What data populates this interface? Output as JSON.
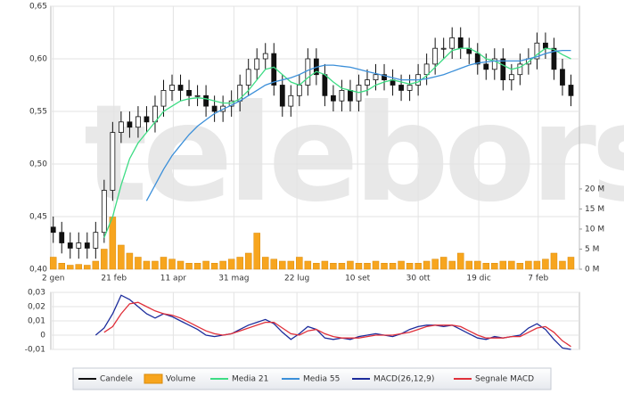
{
  "chart_data": [
    {
      "type": "candlestick",
      "watermark": "teleborsa",
      "x": [
        0,
        7,
        14,
        21,
        28,
        35,
        42,
        49,
        56,
        63,
        70,
        77,
        84,
        91,
        98,
        105,
        112,
        119,
        126,
        133,
        140,
        147,
        154,
        161,
        168,
        175,
        182,
        189,
        196,
        203,
        210,
        217,
        224,
        231,
        238,
        245,
        252,
        259,
        266,
        273,
        280,
        287,
        294,
        301,
        308,
        315,
        322,
        329,
        336,
        343,
        350,
        357,
        364,
        371,
        378,
        385,
        392,
        399,
        406,
        413,
        420,
        427
      ],
      "xlim": [
        -2,
        434
      ],
      "xticks": [
        {
          "value": 0,
          "label": "2 gen"
        },
        {
          "value": 50,
          "label": "21 feb"
        },
        {
          "value": 99,
          "label": "11 apr"
        },
        {
          "value": 149,
          "label": "31 mag"
        },
        {
          "value": 201,
          "label": "22 lug"
        },
        {
          "value": 251,
          "label": "10 set"
        },
        {
          "value": 301,
          "label": "30 ott"
        },
        {
          "value": 351,
          "label": "19 dic"
        },
        {
          "value": 400,
          "label": "7 feb"
        }
      ],
      "ylim": [
        0.4,
        0.65
      ],
      "yticks": [
        {
          "value": 0.4,
          "label": "0,40"
        },
        {
          "value": 0.45,
          "label": "0,45"
        },
        {
          "value": 0.5,
          "label": "0,50"
        },
        {
          "value": 0.55,
          "label": "0,55"
        },
        {
          "value": 0.6,
          "label": "0,60"
        },
        {
          "value": 0.65,
          "label": "0,65"
        }
      ],
      "y2lim": [
        0,
        65.5
      ],
      "y2ticks": [
        {
          "value": 0,
          "label": "0 M"
        },
        {
          "value": 5,
          "label": "5 M"
        },
        {
          "value": 10,
          "label": "10 M"
        },
        {
          "value": 15,
          "label": "15 M"
        },
        {
          "value": 20,
          "label": "20 M"
        }
      ],
      "grid": true,
      "candles": {
        "name": "Candele",
        "color": "#111111",
        "open": [
          0.44,
          0.435,
          0.425,
          0.42,
          0.425,
          0.42,
          0.435,
          0.475,
          0.53,
          0.54,
          0.535,
          0.545,
          0.54,
          0.555,
          0.57,
          0.575,
          0.57,
          0.565,
          0.565,
          0.555,
          0.55,
          0.555,
          0.56,
          0.575,
          0.59,
          0.6,
          0.605,
          0.575,
          0.555,
          0.565,
          0.575,
          0.6,
          0.585,
          0.565,
          0.56,
          0.57,
          0.56,
          0.575,
          0.58,
          0.585,
          0.58,
          0.575,
          0.57,
          0.575,
          0.585,
          0.595,
          0.61,
          0.61,
          0.62,
          0.61,
          0.605,
          0.595,
          0.59,
          0.6,
          0.58,
          0.585,
          0.595,
          0.6,
          0.615,
          0.61,
          0.59,
          0.575
        ],
        "high": [
          0.45,
          0.445,
          0.435,
          0.435,
          0.435,
          0.445,
          0.485,
          0.54,
          0.55,
          0.55,
          0.555,
          0.555,
          0.565,
          0.58,
          0.585,
          0.585,
          0.58,
          0.575,
          0.575,
          0.565,
          0.565,
          0.57,
          0.585,
          0.6,
          0.61,
          0.615,
          0.615,
          0.585,
          0.575,
          0.585,
          0.61,
          0.61,
          0.595,
          0.575,
          0.58,
          0.58,
          0.585,
          0.59,
          0.595,
          0.595,
          0.59,
          0.585,
          0.585,
          0.595,
          0.605,
          0.62,
          0.62,
          0.63,
          0.63,
          0.62,
          0.615,
          0.605,
          0.61,
          0.61,
          0.595,
          0.605,
          0.61,
          0.625,
          0.625,
          0.62,
          0.6,
          0.585
        ],
        "low": [
          0.425,
          0.415,
          0.41,
          0.41,
          0.41,
          0.41,
          0.425,
          0.465,
          0.52,
          0.525,
          0.525,
          0.53,
          0.53,
          0.545,
          0.56,
          0.56,
          0.555,
          0.555,
          0.545,
          0.54,
          0.54,
          0.545,
          0.55,
          0.565,
          0.58,
          0.59,
          0.565,
          0.545,
          0.545,
          0.555,
          0.565,
          0.575,
          0.555,
          0.55,
          0.55,
          0.55,
          0.55,
          0.565,
          0.57,
          0.57,
          0.565,
          0.56,
          0.56,
          0.565,
          0.575,
          0.585,
          0.6,
          0.6,
          0.6,
          0.595,
          0.585,
          0.58,
          0.58,
          0.57,
          0.57,
          0.575,
          0.585,
          0.59,
          0.6,
          0.58,
          0.565,
          0.555
        ],
        "close": [
          0.435,
          0.425,
          0.42,
          0.425,
          0.42,
          0.435,
          0.475,
          0.53,
          0.54,
          0.535,
          0.545,
          0.54,
          0.555,
          0.57,
          0.575,
          0.57,
          0.565,
          0.565,
          0.555,
          0.55,
          0.555,
          0.56,
          0.575,
          0.59,
          0.6,
          0.605,
          0.575,
          0.555,
          0.565,
          0.575,
          0.6,
          0.585,
          0.565,
          0.56,
          0.57,
          0.56,
          0.575,
          0.58,
          0.585,
          0.58,
          0.575,
          0.57,
          0.575,
          0.585,
          0.595,
          0.61,
          0.61,
          0.62,
          0.61,
          0.605,
          0.595,
          0.59,
          0.6,
          0.58,
          0.585,
          0.595,
          0.6,
          0.615,
          0.61,
          0.59,
          0.575,
          0.565
        ]
      },
      "volume": {
        "name": "Volume",
        "color": "#f7a51e",
        "axis": "y2",
        "values": [
          3,
          1.5,
          1,
          1.2,
          1,
          2,
          5,
          13,
          6,
          4,
          3,
          2,
          2,
          3,
          2.5,
          2,
          1.5,
          1.5,
          2,
          1.5,
          2,
          2.5,
          3,
          4,
          9,
          3,
          2.5,
          2,
          2,
          3,
          2,
          1.5,
          2,
          1.5,
          1.5,
          2,
          1.5,
          1.5,
          2,
          1.5,
          1.5,
          2,
          1.5,
          1.5,
          2,
          2.5,
          3,
          2,
          4,
          2,
          2,
          1.5,
          1.5,
          2,
          2,
          1.5,
          2,
          2,
          2.5,
          4,
          2,
          3
        ]
      },
      "series": [
        {
          "name": "Media 21",
          "color": "#3ddc84",
          "values": [
            null,
            null,
            null,
            null,
            null,
            null,
            0.43,
            0.45,
            0.48,
            0.505,
            0.52,
            0.53,
            0.54,
            0.55,
            0.555,
            0.56,
            0.562,
            0.563,
            0.562,
            0.56,
            0.558,
            0.558,
            0.562,
            0.57,
            0.58,
            0.59,
            0.592,
            0.585,
            0.578,
            0.575,
            0.582,
            0.588,
            0.585,
            0.578,
            0.572,
            0.57,
            0.568,
            0.57,
            0.575,
            0.578,
            0.58,
            0.578,
            0.576,
            0.578,
            0.584,
            0.592,
            0.6,
            0.608,
            0.61,
            0.61,
            0.606,
            0.6,
            0.598,
            0.594,
            0.59,
            0.592,
            0.597,
            0.604,
            0.61,
            0.609,
            0.604,
            0.6
          ]
        },
        {
          "name": "Media 55",
          "color": "#3b8fd9",
          "values": [
            null,
            null,
            null,
            null,
            null,
            null,
            null,
            null,
            null,
            null,
            null,
            0.465,
            0.48,
            0.495,
            0.508,
            0.518,
            0.528,
            0.536,
            0.542,
            0.548,
            0.552,
            0.556,
            0.56,
            0.565,
            0.57,
            0.575,
            0.578,
            0.58,
            0.582,
            0.585,
            0.589,
            0.592,
            0.594,
            0.594,
            0.593,
            0.592,
            0.59,
            0.588,
            0.586,
            0.584,
            0.582,
            0.58,
            0.58,
            0.58,
            0.581,
            0.583,
            0.585,
            0.588,
            0.591,
            0.594,
            0.596,
            0.597,
            0.598,
            0.598,
            0.598,
            0.598,
            0.6,
            0.602,
            0.605,
            0.607,
            0.608,
            0.608
          ]
        }
      ]
    },
    {
      "type": "line",
      "x": [
        0,
        7,
        14,
        21,
        28,
        35,
        42,
        49,
        56,
        63,
        70,
        77,
        84,
        91,
        98,
        105,
        112,
        119,
        126,
        133,
        140,
        147,
        154,
        161,
        168,
        175,
        182,
        189,
        196,
        203,
        210,
        217,
        224,
        231,
        238,
        245,
        252,
        259,
        266,
        273,
        280,
        287,
        294,
        301,
        308,
        315,
        322,
        329,
        336,
        343,
        350,
        357,
        364,
        371,
        378,
        385,
        392,
        399,
        406,
        413,
        420,
        427
      ],
      "xlim": [
        -2,
        434
      ],
      "ylim": [
        -0.01,
        0.03
      ],
      "yticks": [
        {
          "value": -0.01,
          "label": "-0,01"
        },
        0,
        {
          "value": 0.01,
          "label": "0,01"
        },
        {
          "value": 0.02,
          "label": "0,02"
        },
        {
          "value": 0.03,
          "label": "0,03"
        }
      ],
      "series": [
        {
          "name": "MACD(26,12,9)",
          "color": "#1c2c9c",
          "values": [
            null,
            null,
            null,
            null,
            null,
            0,
            0.005,
            0.015,
            0.028,
            0.025,
            0.02,
            0.015,
            0.012,
            0.015,
            0.013,
            0.01,
            0.007,
            0.004,
            0,
            -0.001,
            0,
            0.001,
            0.004,
            0.007,
            0.009,
            0.011,
            0.008,
            0.002,
            -0.003,
            0.001,
            0.006,
            0.004,
            -0.002,
            -0.003,
            -0.002,
            -0.003,
            -0.001,
            0,
            0.001,
            0,
            -0.001,
            0.001,
            0.004,
            0.006,
            0.007,
            0.007,
            0.006,
            0.007,
            0.004,
            0.001,
            -0.002,
            -0.003,
            -0.001,
            -0.002,
            -0.001,
            0,
            0.005,
            0.008,
            0.004,
            -0.003,
            -0.009,
            -0.01
          ]
        },
        {
          "name": "Segnale MACD",
          "color": "#e0303a",
          "values": [
            null,
            null,
            null,
            null,
            null,
            null,
            0.002,
            0.006,
            0.015,
            0.022,
            0.023,
            0.02,
            0.017,
            0.015,
            0.014,
            0.012,
            0.009,
            0.006,
            0.003,
            0.001,
            0,
            0.001,
            0.003,
            0.005,
            0.007,
            0.009,
            0.009,
            0.005,
            0.001,
            0,
            0.003,
            0.004,
            0.001,
            -0.001,
            -0.002,
            -0.002,
            -0.002,
            -0.001,
            0,
            0,
            0,
            0.001,
            0.002,
            0.004,
            0.006,
            0.007,
            0.007,
            0.007,
            0.006,
            0.003,
            0,
            -0.002,
            -0.002,
            -0.002,
            -0.001,
            -0.001,
            0.002,
            0.005,
            0.006,
            0.002,
            -0.004,
            -0.008
          ]
        }
      ]
    }
  ]
}
